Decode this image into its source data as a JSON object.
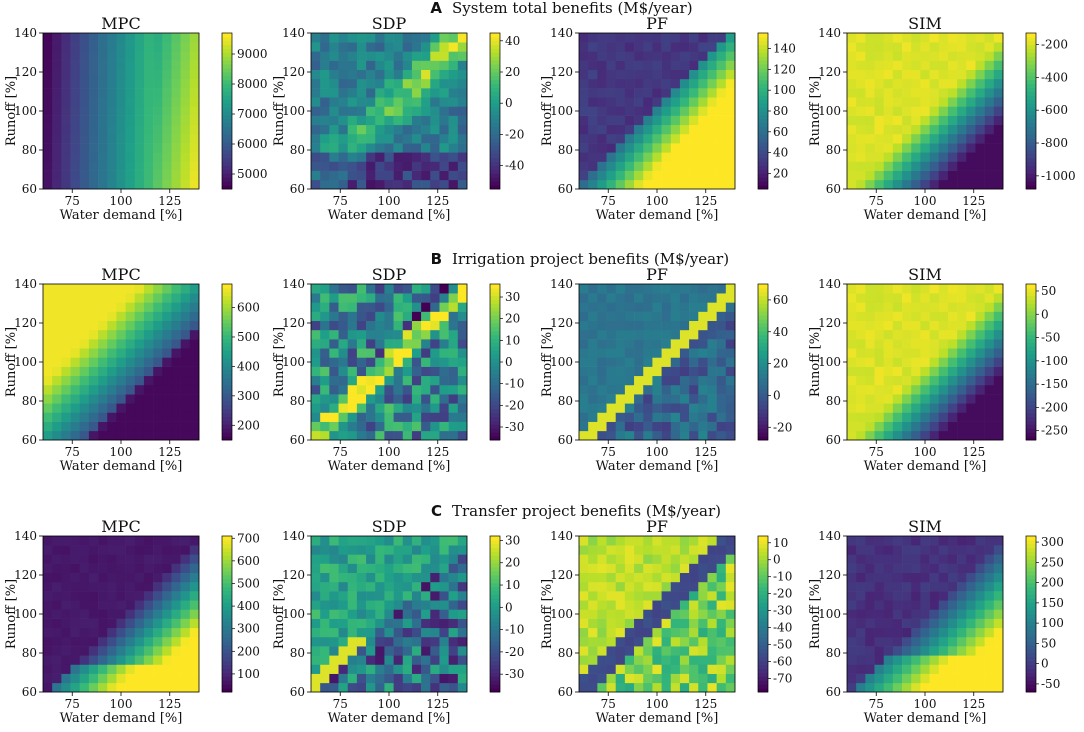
{
  "figure": {
    "colormap": "viridis",
    "colors": {
      "low": "#440154",
      "mid": "#21918c",
      "high": "#fde725"
    }
  },
  "chart_data": [
    {
      "row": "A",
      "row_title": "System total benefits (M$/year)",
      "panels": [
        {
          "title": "MPC",
          "type": "heatmap",
          "pattern": "col",
          "xlabel": "Water demand [%]",
          "ylabel": "Runoff [%]",
          "xlim": [
            60,
            140
          ],
          "ylim": [
            60,
            140
          ],
          "xticks": [
            "75",
            "100",
            "125"
          ],
          "yticks": [
            "60",
            "80",
            "100",
            "120",
            "140"
          ],
          "colorbar": {
            "min": 4500,
            "max": 9700,
            "ticks": [
              "5000",
              "6000",
              "7000",
              "8000",
              "9000"
            ]
          }
        },
        {
          "title": "SDP",
          "type": "heatmap",
          "pattern": "diag_noise",
          "xlabel": "Water demand [%]",
          "ylabel": "Runoff [%]",
          "xlim": [
            60,
            140
          ],
          "ylim": [
            60,
            140
          ],
          "xticks": [
            "75",
            "100",
            "125"
          ],
          "yticks": [
            "60",
            "80",
            "100",
            "120",
            "140"
          ],
          "colorbar": {
            "min": -55,
            "max": 45,
            "ticks": [
              "-40",
              "-20",
              "0",
              "20",
              "40"
            ]
          }
        },
        {
          "title": "PF",
          "type": "heatmap",
          "pattern": "lower_wedge",
          "xlabel": "Water demand [%]",
          "ylabel": "Runoff [%]",
          "xlim": [
            60,
            140
          ],
          "ylim": [
            60,
            140
          ],
          "xticks": [
            "75",
            "100",
            "125"
          ],
          "yticks": [
            "60",
            "80",
            "100",
            "120",
            "140"
          ],
          "colorbar": {
            "min": 5,
            "max": 155,
            "ticks": [
              "20",
              "40",
              "60",
              "80",
              "100",
              "120",
              "140"
            ]
          }
        },
        {
          "title": "SIM",
          "type": "heatmap",
          "pattern": "bottom_right_low",
          "xlabel": "Water demand [%]",
          "ylabel": "Runoff [%]",
          "xlim": [
            60,
            140
          ],
          "ylim": [
            60,
            140
          ],
          "xticks": [
            "75",
            "100",
            "125"
          ],
          "yticks": [
            "60",
            "80",
            "100",
            "120",
            "140"
          ],
          "colorbar": {
            "min": -1080,
            "max": -130,
            "ticks": [
              "-200",
              "-400",
              "-600",
              "-800",
              "-1000"
            ]
          }
        }
      ]
    },
    {
      "row": "B",
      "row_title": "Irrigation project benefits (M$/year)",
      "panels": [
        {
          "title": "MPC",
          "type": "heatmap",
          "pattern": "upper_left_high",
          "xlabel": "Water demand [%]",
          "ylabel": "Runoff [%]",
          "xlim": [
            60,
            140
          ],
          "ylim": [
            60,
            140
          ],
          "xticks": [
            "75",
            "100",
            "125"
          ],
          "yticks": [
            "60",
            "80",
            "100",
            "120",
            "140"
          ],
          "colorbar": {
            "min": 150,
            "max": 680,
            "ticks": [
              "200",
              "300",
              "400",
              "500",
              "600"
            ]
          }
        },
        {
          "title": "SDP",
          "type": "heatmap",
          "pattern": "diag_band_noise",
          "xlabel": "Water demand [%]",
          "ylabel": "Runoff [%]",
          "xlim": [
            60,
            140
          ],
          "ylim": [
            60,
            140
          ],
          "xticks": [
            "75",
            "100",
            "125"
          ],
          "yticks": [
            "60",
            "80",
            "100",
            "120",
            "140"
          ],
          "colorbar": {
            "min": -36,
            "max": 36,
            "ticks": [
              "-30",
              "-20",
              "-10",
              "0",
              "10",
              "20",
              "30"
            ]
          }
        },
        {
          "title": "PF",
          "type": "heatmap",
          "pattern": "diag_band",
          "xlabel": "Water demand [%]",
          "ylabel": "Runoff [%]",
          "xlim": [
            60,
            140
          ],
          "ylim": [
            60,
            140
          ],
          "xticks": [
            "75",
            "100",
            "125"
          ],
          "yticks": [
            "60",
            "80",
            "100",
            "120",
            "140"
          ],
          "colorbar": {
            "min": -28,
            "max": 70,
            "ticks": [
              "-20",
              "0",
              "20",
              "40",
              "60"
            ]
          }
        },
        {
          "title": "SIM",
          "type": "heatmap",
          "pattern": "bottom_right_low",
          "xlabel": "Water demand [%]",
          "ylabel": "Runoff [%]",
          "xlim": [
            60,
            140
          ],
          "ylim": [
            60,
            140
          ],
          "xticks": [
            "75",
            "100",
            "125"
          ],
          "yticks": [
            "60",
            "80",
            "100",
            "120",
            "140"
          ],
          "colorbar": {
            "min": -270,
            "max": 65,
            "ticks": [
              "50",
              "0",
              "-50",
              "-100",
              "-150",
              "-200",
              "-250"
            ]
          }
        }
      ]
    },
    {
      "row": "C",
      "row_title": "Transfer project benefits (M$/year)",
      "panels": [
        {
          "title": "MPC",
          "type": "heatmap",
          "pattern": "bottom_right_high",
          "xlabel": "Water demand [%]",
          "ylabel": "Runoff [%]",
          "xlim": [
            60,
            140
          ],
          "ylim": [
            60,
            140
          ],
          "xticks": [
            "75",
            "100",
            "125"
          ],
          "yticks": [
            "60",
            "80",
            "100",
            "120",
            "140"
          ],
          "colorbar": {
            "min": 20,
            "max": 710,
            "ticks": [
              "100",
              "200",
              "300",
              "400",
              "500",
              "600",
              "700"
            ]
          }
        },
        {
          "title": "SDP",
          "type": "heatmap",
          "pattern": "lower_noise",
          "xlabel": "Water demand [%]",
          "ylabel": "Runoff [%]",
          "xlim": [
            60,
            140
          ],
          "ylim": [
            60,
            140
          ],
          "xticks": [
            "75",
            "100",
            "125"
          ],
          "yticks": [
            "60",
            "80",
            "100",
            "120",
            "140"
          ],
          "colorbar": {
            "min": -38,
            "max": 32,
            "ticks": [
              "-30",
              "-20",
              "-10",
              "0",
              "10",
              "20",
              "30"
            ]
          }
        },
        {
          "title": "PF",
          "type": "heatmap",
          "pattern": "diag_low",
          "xlabel": "Water demand [%]",
          "ylabel": "Runoff [%]",
          "xlim": [
            60,
            140
          ],
          "ylim": [
            60,
            140
          ],
          "xticks": [
            "75",
            "100",
            "125"
          ],
          "yticks": [
            "60",
            "80",
            "100",
            "120",
            "140"
          ],
          "colorbar": {
            "min": -78,
            "max": 14,
            "ticks": [
              "10",
              "0",
              "-10",
              "-20",
              "-30",
              "-40",
              "-50",
              "-60",
              "-70"
            ]
          }
        },
        {
          "title": "SIM",
          "type": "heatmap",
          "pattern": "bottom_right_high_sim",
          "xlabel": "Water demand [%]",
          "ylabel": "Runoff [%]",
          "xlim": [
            60,
            140
          ],
          "ylim": [
            60,
            140
          ],
          "xticks": [
            "75",
            "100",
            "125"
          ],
          "yticks": [
            "60",
            "80",
            "100",
            "120",
            "140"
          ],
          "colorbar": {
            "min": -70,
            "max": 315,
            "ticks": [
              "300",
              "250",
              "200",
              "150",
              "100",
              "50",
              "0",
              "-50"
            ]
          }
        }
      ]
    }
  ]
}
